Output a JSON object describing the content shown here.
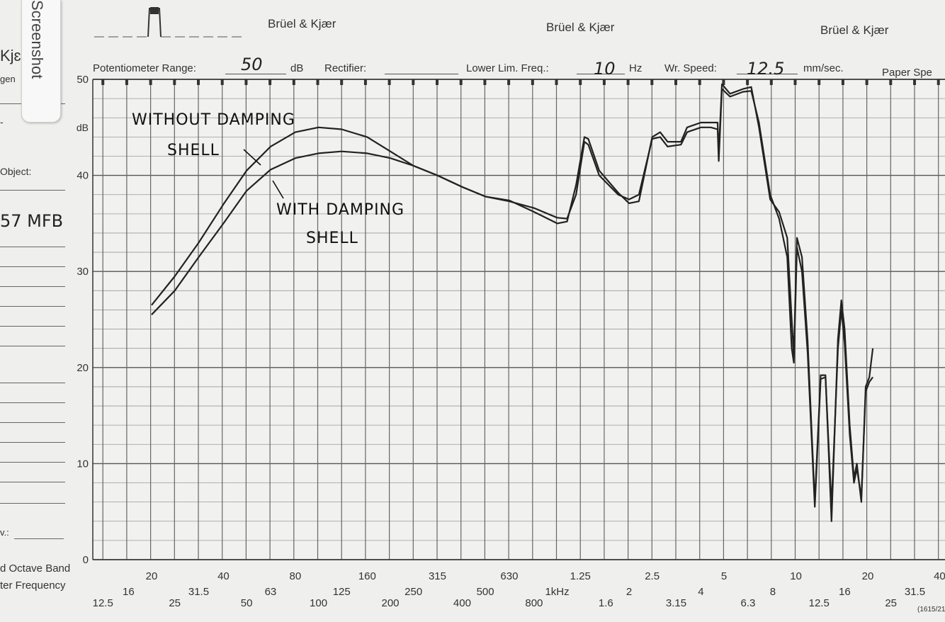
{
  "header": {
    "brand_1": "Brüel & Kjær",
    "brand_2": "Brüel & Kjær",
    "brand_3": "Brüel & Kjær",
    "pot_label": "Potentiometer Range:",
    "pot_value": "50",
    "pot_unit": "dB",
    "rectifier_label": "Rectifier:",
    "freq_label": "Lower Lim. Freq.:",
    "freq_value": "10",
    "freq_unit": "Hz",
    "speed_label": "Wr. Speed:",
    "speed_value": "12.5",
    "speed_unit": "mm/sec.",
    "paper_label": "Paper Spe"
  },
  "left_margin": {
    "kj": "Kjɛ",
    "gen": "gen",
    "object_label": "Object:",
    "object_value": "57 MFB",
    "v_label": "v.:",
    "octave_1": "d Octave Band",
    "octave_2": "ter Frequency"
  },
  "screenshot_tab": "Screenshot",
  "annotations": {
    "without_1": "WITHOUT DAMPING",
    "without_2": "SHELL",
    "with_1": "WITH DAMPING",
    "with_2": "SHELL"
  },
  "chart_data": {
    "type": "line",
    "title": "",
    "xlabel": "Frequency",
    "ylabel": "dB",
    "xscale": "log",
    "xlim": [
      12.5,
      40000
    ],
    "ylim": [
      0,
      50
    ],
    "grid": true,
    "y_ticks": [
      0,
      10,
      20,
      30,
      40,
      50
    ],
    "y_unit_label": "dB",
    "x_ticks_upper": [
      {
        "f": 20,
        "label": "20"
      },
      {
        "f": 40,
        "label": "40"
      },
      {
        "f": 80,
        "label": "80"
      },
      {
        "f": 160,
        "label": "160"
      },
      {
        "f": 315,
        "label": "315"
      },
      {
        "f": 630,
        "label": "630"
      },
      {
        "f": 1250,
        "label": "1.25"
      },
      {
        "f": 2500,
        "label": "2.5"
      },
      {
        "f": 5000,
        "label": "5"
      },
      {
        "f": 10000,
        "label": "10"
      },
      {
        "f": 20000,
        "label": "20"
      },
      {
        "f": 40000,
        "label": "40"
      }
    ],
    "x_ticks_mid": [
      {
        "f": 16,
        "label": "16"
      },
      {
        "f": 31.5,
        "label": "31.5"
      },
      {
        "f": 63,
        "label": "63"
      },
      {
        "f": 125,
        "label": "125"
      },
      {
        "f": 250,
        "label": "250"
      },
      {
        "f": 500,
        "label": "500"
      },
      {
        "f": 1000,
        "label": "1kHz"
      },
      {
        "f": 2000,
        "label": "2"
      },
      {
        "f": 4000,
        "label": "4"
      },
      {
        "f": 8000,
        "label": "8"
      },
      {
        "f": 16000,
        "label": "16"
      },
      {
        "f": 31500,
        "label": "31.5"
      }
    ],
    "x_ticks_low": [
      {
        "f": 12.5,
        "label": "12.5"
      },
      {
        "f": 25,
        "label": "25"
      },
      {
        "f": 50,
        "label": "50"
      },
      {
        "f": 100,
        "label": "100"
      },
      {
        "f": 200,
        "label": "200"
      },
      {
        "f": 400,
        "label": "400"
      },
      {
        "f": 800,
        "label": "800"
      },
      {
        "f": 1600,
        "label": "1.6"
      },
      {
        "f": 3150,
        "label": "3.15"
      },
      {
        "f": 6300,
        "label": "6.3"
      },
      {
        "f": 12500,
        "label": "12.5"
      },
      {
        "f": 25000,
        "label": "25"
      }
    ],
    "x_tick_suffix": "(1615/21",
    "series": [
      {
        "name": "WITHOUT DAMPING SHELL",
        "color": "#222222",
        "points": [
          [
            20,
            26.5
          ],
          [
            25,
            29.5
          ],
          [
            31.5,
            33
          ],
          [
            40,
            37
          ],
          [
            50,
            40.5
          ],
          [
            63,
            43
          ],
          [
            80,
            44.5
          ],
          [
            100,
            45
          ],
          [
            125,
            44.8
          ],
          [
            160,
            44
          ],
          [
            200,
            42.5
          ],
          [
            250,
            41
          ],
          [
            315,
            40
          ],
          [
            400,
            38.8
          ],
          [
            500,
            37.8
          ],
          [
            630,
            37.4
          ],
          [
            800,
            36.2
          ],
          [
            1000,
            35
          ],
          [
            1100,
            35.2
          ],
          [
            1200,
            39
          ],
          [
            1300,
            44
          ],
          [
            1350,
            43.8
          ],
          [
            1500,
            40.5
          ],
          [
            1800,
            38.2
          ],
          [
            2000,
            37.1
          ],
          [
            2200,
            37.3
          ],
          [
            2500,
            44
          ],
          [
            2700,
            44.5
          ],
          [
            2900,
            43.5
          ],
          [
            3300,
            43.5
          ],
          [
            3500,
            45
          ],
          [
            4000,
            45.5
          ],
          [
            4400,
            45.5
          ],
          [
            4700,
            45.5
          ],
          [
            4750,
            42.3
          ],
          [
            4900,
            49.5
          ],
          [
            5300,
            48.5
          ],
          [
            6000,
            49
          ],
          [
            6500,
            49.2
          ],
          [
            7000,
            45
          ],
          [
            7800,
            37.5
          ],
          [
            8500,
            36.2
          ],
          [
            9200,
            33.5
          ],
          [
            9600,
            25
          ],
          [
            9800,
            21.3
          ],
          [
            10100,
            33.5
          ],
          [
            10600,
            31.5
          ],
          [
            11200,
            22.8
          ],
          [
            12000,
            6
          ],
          [
            12700,
            19.2
          ],
          [
            13300,
            19.2
          ],
          [
            14100,
            4
          ],
          [
            15000,
            23
          ],
          [
            15500,
            27
          ],
          [
            16000,
            24
          ],
          [
            16800,
            14
          ],
          [
            17500,
            8.5
          ],
          [
            18000,
            10
          ],
          [
            18800,
            6
          ],
          [
            19600,
            18
          ],
          [
            20300,
            19
          ],
          [
            21000,
            22
          ]
        ]
      },
      {
        "name": "WITH DAMPING SHELL",
        "color": "#222222",
        "points": [
          [
            20,
            25.5
          ],
          [
            25,
            28
          ],
          [
            31.5,
            31.5
          ],
          [
            40,
            35
          ],
          [
            50,
            38.4
          ],
          [
            63,
            40.6
          ],
          [
            80,
            41.8
          ],
          [
            100,
            42.3
          ],
          [
            125,
            42.5
          ],
          [
            160,
            42.3
          ],
          [
            200,
            41.8
          ],
          [
            250,
            41
          ],
          [
            315,
            40
          ],
          [
            400,
            38.8
          ],
          [
            500,
            37.8
          ],
          [
            630,
            37.3
          ],
          [
            800,
            36.6
          ],
          [
            1000,
            35.6
          ],
          [
            1100,
            35.5
          ],
          [
            1200,
            38
          ],
          [
            1300,
            43.5
          ],
          [
            1350,
            43.2
          ],
          [
            1500,
            40
          ],
          [
            1800,
            38
          ],
          [
            2000,
            37.5
          ],
          [
            2200,
            38
          ],
          [
            2500,
            43.8
          ],
          [
            2700,
            44
          ],
          [
            2900,
            43
          ],
          [
            3300,
            43.2
          ],
          [
            3500,
            44.5
          ],
          [
            4000,
            45
          ],
          [
            4400,
            45
          ],
          [
            4700,
            44.8
          ],
          [
            4750,
            41.5
          ],
          [
            4900,
            49
          ],
          [
            5300,
            48.2
          ],
          [
            6000,
            48.7
          ],
          [
            6500,
            48.8
          ],
          [
            7000,
            45.5
          ],
          [
            7800,
            38
          ],
          [
            8500,
            35.5
          ],
          [
            9200,
            31.5
          ],
          [
            9600,
            22
          ],
          [
            9800,
            20.5
          ],
          [
            10100,
            32.5
          ],
          [
            10600,
            30
          ],
          [
            11200,
            21.5
          ],
          [
            12000,
            5.5
          ],
          [
            12700,
            18.8
          ],
          [
            13300,
            19
          ],
          [
            14100,
            5.5
          ],
          [
            15000,
            22
          ],
          [
            15500,
            26
          ],
          [
            16000,
            22.5
          ],
          [
            16800,
            13
          ],
          [
            17500,
            8
          ],
          [
            18000,
            9.5
          ],
          [
            18800,
            6.5
          ],
          [
            19600,
            17.5
          ],
          [
            20300,
            18.5
          ],
          [
            21000,
            19
          ]
        ]
      }
    ]
  }
}
